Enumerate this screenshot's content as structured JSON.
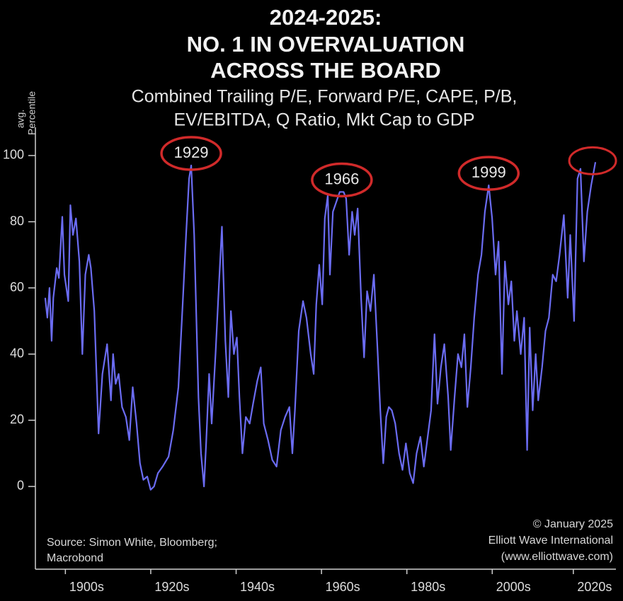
{
  "chart_data": {
    "type": "line",
    "title": [
      "2024-2025:",
      "NO. 1 IN OVERVALUATION",
      "ACROSS THE BOARD"
    ],
    "subtitle": [
      "Combined Trailing P/E, Forward P/E, CAPE, P/B,",
      "EV/EBITDA, Q Ratio, Mkt Cap to GDP"
    ],
    "y_label": [
      "avg.",
      "Percentile"
    ],
    "source": [
      "Source: Simon White, Bloomberg;",
      "Macrobond"
    ],
    "credit": [
      "© January 2025",
      "Elliott Wave International",
      "(www.elliottwave.com)"
    ],
    "color": "#6b6cf2",
    "xlim": [
      1893,
      2029
    ],
    "ylim": [
      -25,
      147
    ],
    "yticks": [
      0,
      20,
      40,
      60,
      80,
      100
    ],
    "xticks": [
      {
        "value": 1905,
        "label": "1900s"
      },
      {
        "value": 1925,
        "label": "1920s"
      },
      {
        "value": 1945,
        "label": "1940s"
      },
      {
        "value": 1965,
        "label": "1960s"
      },
      {
        "value": 1985,
        "label": "1980s"
      },
      {
        "value": 2005,
        "label": "2000s"
      },
      {
        "value": 2024,
        "label": "2020s"
      }
    ],
    "annotations": [
      {
        "label": "1929",
        "x": 1929.5,
        "y": 97
      },
      {
        "label": "1966",
        "x": 1964.8,
        "y": 89
      },
      {
        "label": "1999",
        "x": 1999.2,
        "y": 91
      }
    ],
    "x": [
      1895.3,
      1895.8,
      1896.3,
      1896.8,
      1897.2,
      1898,
      1898.5,
      1899.3,
      1899.8,
      1900.7,
      1901.2,
      1901.8,
      1902.5,
      1903.3,
      1904,
      1904.7,
      1905.5,
      1906,
      1906.8,
      1907.8,
      1908.7,
      1909.8,
      1910.7,
      1911.2,
      1911.8,
      1912.5,
      1913.3,
      1914.2,
      1915,
      1915.8,
      1916.7,
      1917.5,
      1918.3,
      1919.2,
      1920,
      1920.8,
      1921.7,
      1922.8,
      1924.2,
      1925.3,
      1926.5,
      1927.5,
      1928.3,
      1929,
      1929.5,
      1930.2,
      1931.2,
      1931.8,
      1932.5,
      1933,
      1933.7,
      1934.3,
      1935.2,
      1936,
      1936.7,
      1937.5,
      1938.2,
      1938.8,
      1939.5,
      1940.2,
      1940.8,
      1941.5,
      1942.3,
      1943.2,
      1944,
      1945,
      1945.8,
      1946.5,
      1947.5,
      1948.5,
      1949.5,
      1950.5,
      1951.5,
      1952.5,
      1953.2,
      1953.8,
      1954.7,
      1955.7,
      1956.5,
      1957.5,
      1958.2,
      1958.8,
      1959.5,
      1960.2,
      1960.8,
      1961.5,
      1962,
      1962.7,
      1963.5,
      1964.3,
      1965.2,
      1965.8,
      1966.5,
      1967.2,
      1967.8,
      1968.5,
      1969.3,
      1970,
      1970.7,
      1971.5,
      1972.3,
      1973.2,
      1973.8,
      1974.5,
      1975.2,
      1975.8,
      1976.5,
      1977.3,
      1978.2,
      1979,
      1979.8,
      1980.7,
      1981.5,
      1982.3,
      1983.2,
      1984,
      1984.8,
      1985.7,
      1986.5,
      1987.2,
      1988,
      1988.8,
      1989.7,
      1990.3,
      1991.2,
      1992,
      1992.8,
      1993.5,
      1994.2,
      1995,
      1995.8,
      1996.7,
      1997.5,
      1998.3,
      1999.2,
      2000,
      2000.8,
      2001.5,
      2002.3,
      2003,
      2003.8,
      2004.5,
      2005.2,
      2005.8,
      2006.7,
      2007.5,
      2008.2,
      2008.8,
      2009.5,
      2010.2,
      2010.8,
      2011.7,
      2012.5,
      2013.3,
      2014.2,
      2015,
      2015.8,
      2016.8,
      2017.7,
      2018.3,
      2019.2,
      2020,
      2020.7,
      2021.5,
      2022.3,
      2023.2,
      2024.2
    ],
    "values": [
      57,
      51,
      60,
      44,
      57,
      66,
      63,
      81.5,
      64,
      56,
      85,
      76,
      81,
      68,
      40,
      64,
      70,
      66,
      53,
      16,
      34,
      43,
      26,
      40,
      31,
      34,
      24,
      21,
      14,
      30,
      19,
      7,
      2,
      3,
      -1,
      0,
      4,
      6,
      9,
      17,
      30,
      55,
      76,
      93,
      97,
      76,
      27,
      10,
      0,
      13,
      34,
      19,
      40,
      61,
      78.5,
      44,
      27,
      53,
      40,
      45,
      27,
      10,
      21,
      19,
      25,
      32,
      36,
      19,
      14,
      8,
      6,
      17,
      21,
      24,
      10,
      23,
      47,
      56,
      51,
      40,
      34,
      55,
      67,
      55,
      81,
      88,
      64,
      83,
      86,
      89,
      89,
      87,
      70,
      83,
      76,
      84,
      57,
      39,
      59,
      53,
      64,
      40,
      23,
      7,
      21,
      24,
      23,
      19,
      10,
      5,
      13,
      4,
      1,
      10,
      15,
      6,
      14,
      23,
      46,
      25,
      36,
      43,
      27,
      11,
      27,
      40,
      36,
      46,
      24,
      36,
      51,
      64,
      70,
      83,
      91,
      81,
      64,
      74,
      34,
      68,
      55,
      62,
      44,
      53,
      40,
      51,
      11,
      48,
      23,
      40,
      26,
      36,
      47,
      51,
      64,
      62,
      70,
      82,
      57,
      76,
      50,
      93,
      96,
      68,
      83,
      91,
      98
    ]
  }
}
